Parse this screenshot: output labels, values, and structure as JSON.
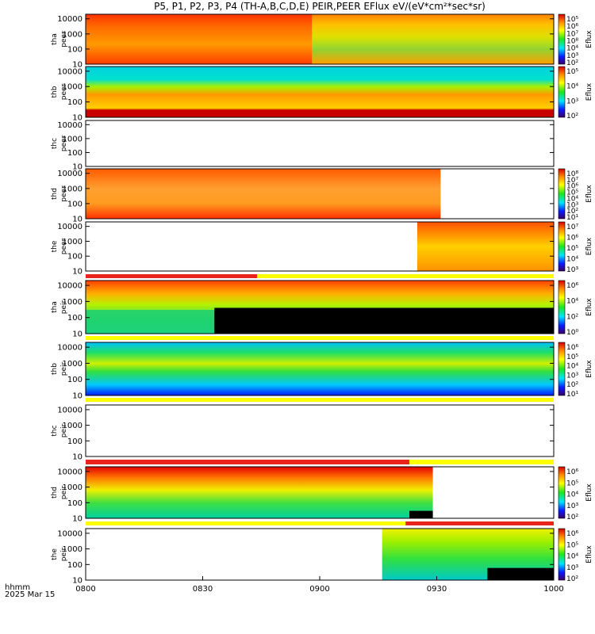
{
  "title": "P5, P1, P2, P3, P4 (TH-A,B,C,D,E) PEIR,PEER EFlux eV/(eV*cm²*sec*sr)",
  "footer": {
    "line1": "hhmm",
    "line2": "2025 Mar 15"
  },
  "colors": {
    "red": "#e8241c",
    "yellow": "#ffff00",
    "black": "#000000",
    "white": "#ffffff"
  },
  "chart_data": {
    "type": "heatmap",
    "x_ticks": [
      "0800",
      "0830",
      "0900",
      "0930",
      "1000"
    ],
    "x_range_minutes": [
      0,
      120
    ],
    "y_scale": "log",
    "y_range": [
      10,
      20000
    ],
    "y_ticks": [
      "10",
      "100",
      "1000",
      "10000"
    ],
    "panels": [
      {
        "probe": "tha",
        "species": "peer",
        "ylabel": [
          "tha",
          "peer"
        ],
        "has_data": true,
        "data_range": [
          0,
          120
        ],
        "colorbar": {
          "label": "Eflux",
          "ticks": [
            "10⁵",
            "10⁶",
            "10⁷",
            "10⁸",
            "10⁴",
            "10³",
            "10²"
          ]
        }
      },
      {
        "probe": "thb",
        "species": "peer",
        "ylabel": [
          "thb",
          "peer"
        ],
        "has_data": true,
        "data_range": [
          0,
          120
        ],
        "colorbar": {
          "label": "Eflux",
          "ticks": [
            "10⁵",
            "10⁴",
            "10³",
            "10²"
          ]
        }
      },
      {
        "probe": "thc",
        "species": "peer",
        "ylabel": [
          "thc",
          "peer"
        ],
        "has_data": false,
        "data_range": null,
        "colorbar": null
      },
      {
        "probe": "thd",
        "species": "peer",
        "ylabel": [
          "thd",
          "peer"
        ],
        "has_data": true,
        "data_range": [
          0,
          91
        ],
        "colorbar": {
          "label": "Eflux",
          "ticks": [
            "10⁸",
            "10⁷",
            "10⁶",
            "10⁵",
            "10⁴",
            "10³",
            "10²",
            "10¹"
          ]
        }
      },
      {
        "probe": "the",
        "species": "peer",
        "ylabel": [
          "the",
          "peer"
        ],
        "has_data": true,
        "data_range": [
          85,
          120
        ],
        "colorbar": {
          "label": "Eflux",
          "ticks": [
            "10⁷",
            "10⁶",
            "10⁵",
            "10⁴",
            "10³"
          ]
        }
      },
      {
        "probe": "tha",
        "species": "peir",
        "ylabel": [
          "tha",
          "peir"
        ],
        "has_data": true,
        "data_range": [
          0,
          120
        ],
        "colorbar": {
          "label": "Eflux",
          "ticks": [
            "10⁶",
            "10⁴",
            "10²",
            "10⁰"
          ]
        }
      },
      {
        "probe": "thb",
        "species": "peir",
        "ylabel": [
          "thb",
          "peir"
        ],
        "has_data": true,
        "data_range": [
          0,
          120
        ],
        "colorbar": {
          "label": "Eflux",
          "ticks": [
            "10⁶",
            "10⁵",
            "10⁴",
            "10³",
            "10²",
            "10¹"
          ]
        }
      },
      {
        "probe": "thc",
        "species": "peir",
        "ylabel": [
          "thc",
          "peir"
        ],
        "has_data": false,
        "data_range": null,
        "colorbar": null
      },
      {
        "probe": "thd",
        "species": "peir",
        "ylabel": [
          "thd",
          "peir"
        ],
        "has_data": true,
        "data_range": [
          0,
          89
        ],
        "colorbar": {
          "label": "Eflux",
          "ticks": [
            "10⁶",
            "10⁵",
            "10⁴",
            "10³",
            "10²"
          ]
        }
      },
      {
        "probe": "the",
        "species": "peir",
        "ylabel": [
          "the",
          "peir"
        ],
        "has_data": true,
        "data_range": [
          76,
          120
        ],
        "colorbar": {
          "label": "Eflux",
          "ticks": [
            "10⁶",
            "10⁵",
            "10⁴",
            "10³",
            "10²"
          ]
        }
      }
    ],
    "mode_bars": [
      {
        "segments": [
          {
            "from": 0,
            "to": 44,
            "color": "red"
          },
          {
            "from": 44,
            "to": 120,
            "color": "yellow"
          }
        ]
      },
      {
        "segments": [
          {
            "from": 0,
            "to": 120,
            "color": "yellow"
          }
        ]
      },
      {
        "segments": [
          {
            "from": 0,
            "to": 120,
            "color": "yellow"
          }
        ]
      },
      {
        "segments": [
          {
            "from": 0,
            "to": 83,
            "color": "red"
          },
          {
            "from": 83,
            "to": 120,
            "color": "yellow"
          }
        ]
      },
      {
        "segments": [
          {
            "from": 0,
            "to": 82,
            "color": "yellow"
          },
          {
            "from": 82,
            "to": 120,
            "color": "red"
          }
        ]
      }
    ]
  }
}
